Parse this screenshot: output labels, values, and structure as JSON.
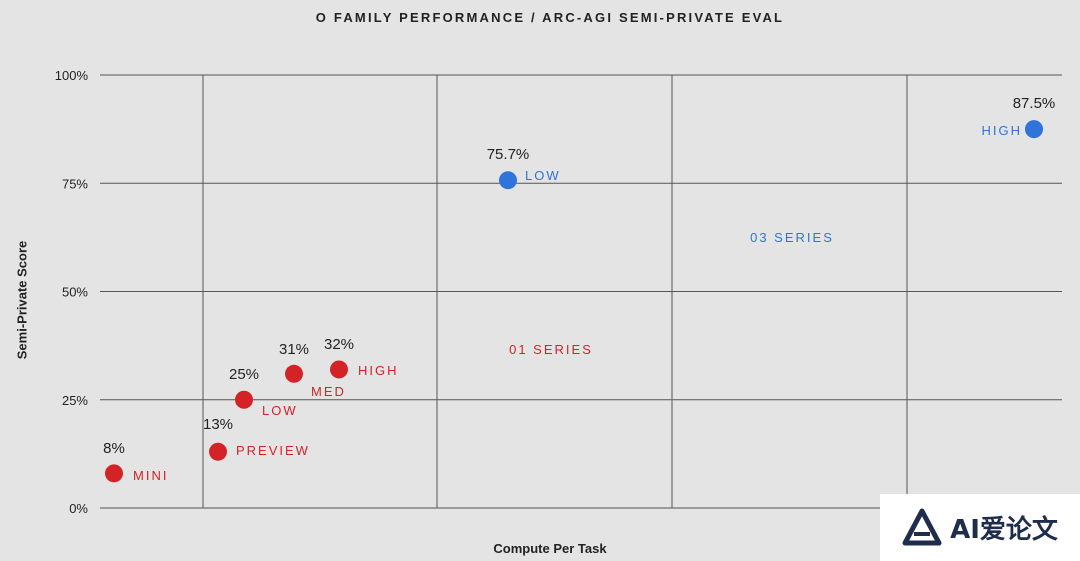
{
  "chart_data": {
    "type": "scatter",
    "title": "O FAMILY PERFORMANCE / ARC-AGI SEMI-PRIVATE EVAL",
    "xlabel": "Compute Per Task",
    "ylabel": "Semi-Private Score",
    "ylim": [
      0,
      100
    ],
    "yticks": [
      "0%",
      "25%",
      "50%",
      "75%",
      "100%"
    ],
    "grid": true,
    "series": [
      {
        "name": "01 SERIES",
        "color": "#d42327",
        "points": [
          {
            "label": "MINI",
            "value_label": "8%",
            "y": 8
          },
          {
            "label": "PREVIEW",
            "value_label": "13%",
            "y": 13
          },
          {
            "label": "LOW",
            "value_label": "25%",
            "y": 25
          },
          {
            "label": "MED",
            "value_label": "31%",
            "y": 31
          },
          {
            "label": "HIGH",
            "value_label": "32%",
            "y": 32
          }
        ]
      },
      {
        "name": "03 SERIES",
        "color": "#2f74d8",
        "points": [
          {
            "label": "LOW",
            "value_label": "75.7%",
            "y": 75.7
          },
          {
            "label": "HIGH",
            "value_label": "87.5%",
            "y": 87.5
          }
        ]
      }
    ]
  },
  "watermark": {
    "text": "AI爱论文",
    "icon": "a-logo-icon"
  }
}
